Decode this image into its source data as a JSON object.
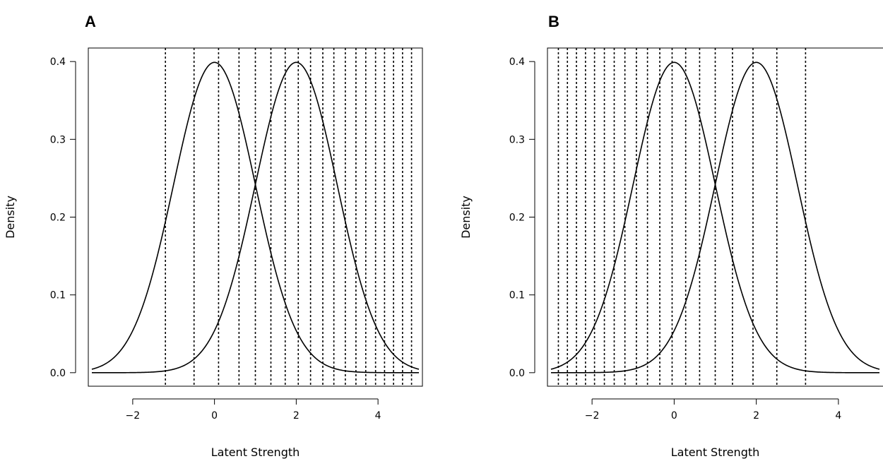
{
  "chart_data": [
    {
      "panel": "A",
      "type": "line",
      "xlabel": "Latent Strength",
      "ylabel": "Density",
      "xlim": [
        -3,
        5
      ],
      "ylim": [
        0,
        0.4
      ],
      "xticks": [
        -2,
        0,
        2,
        4
      ],
      "xtick_labels": [
        "−2",
        "0",
        "2",
        "4"
      ],
      "yticks": [
        0.0,
        0.1,
        0.2,
        0.3,
        0.4
      ],
      "ytick_labels": [
        "0.0",
        "0.1",
        "0.2",
        "0.3",
        "0.4"
      ],
      "series": [
        {
          "distribution": "normal",
          "mean": 0,
          "sd": 1,
          "x_range": [
            -3,
            5
          ]
        },
        {
          "distribution": "normal",
          "mean": 2,
          "sd": 1,
          "x_range": [
            -3,
            5
          ]
        }
      ],
      "criteria": [
        -1.2,
        -0.5,
        0.1,
        0.6,
        1.0,
        1.38,
        1.73,
        2.05,
        2.35,
        2.65,
        2.92,
        3.2,
        3.46,
        3.7,
        3.94,
        4.16,
        4.38,
        4.6,
        4.82
      ]
    },
    {
      "panel": "B",
      "type": "line",
      "xlabel": "Latent Strength",
      "ylabel": "Density",
      "xlim": [
        -3,
        5
      ],
      "ylim": [
        0,
        0.4
      ],
      "xticks": [
        -2,
        0,
        2,
        4
      ],
      "xtick_labels": [
        "−2",
        "0",
        "2",
        "4"
      ],
      "yticks": [
        0.0,
        0.1,
        0.2,
        0.3,
        0.4
      ],
      "ytick_labels": [
        "0.0",
        "0.1",
        "0.2",
        "0.3",
        "0.4"
      ],
      "series": [
        {
          "distribution": "normal",
          "mean": 0,
          "sd": 1,
          "x_range": [
            -3,
            5
          ]
        },
        {
          "distribution": "normal",
          "mean": 2,
          "sd": 1,
          "x_range": [
            -3,
            5
          ]
        }
      ],
      "criteria": [
        -2.82,
        -2.6,
        -2.38,
        -2.16,
        -1.94,
        -1.7,
        -1.46,
        -1.2,
        -0.92,
        -0.65,
        -0.35,
        -0.05,
        0.28,
        0.62,
        1.0,
        1.42,
        1.92,
        2.5,
        3.2
      ]
    }
  ]
}
